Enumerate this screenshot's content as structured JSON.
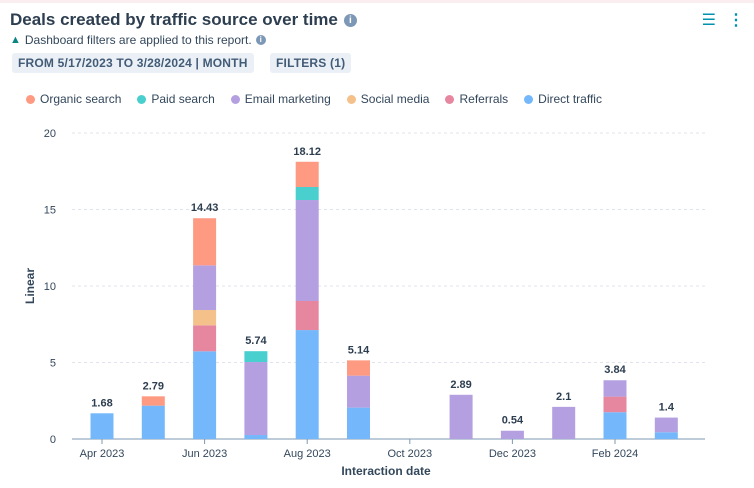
{
  "header": {
    "title": "Deals created by traffic source over time",
    "notice": "Dashboard filters are applied to this report.",
    "date_range": "FROM 5/17/2023 TO 3/28/2024 | MONTH",
    "filters": "FILTERS (1)"
  },
  "chart_data": {
    "type": "bar",
    "stacked": true,
    "xlabel": "Interaction date",
    "ylabel": "Linear",
    "ylim": [
      0,
      20
    ],
    "yticks": [
      0,
      5,
      10,
      15,
      20
    ],
    "grid": true,
    "legend": "top-left",
    "categories": [
      "Apr 2023",
      "May 2023",
      "Jun 2023",
      "Jul 2023",
      "Aug 2023",
      "Sep 2023",
      "Oct 2023",
      "Nov 2023",
      "Dec 2023",
      "Jan 2024",
      "Feb 2024",
      "Mar 2024"
    ],
    "xtick_labels": [
      "Apr 2023",
      "Jun 2023",
      "Aug 2023",
      "Oct 2023",
      "Dec 2023",
      "Feb 2024"
    ],
    "totals": [
      "1.68",
      "2.79",
      "14.43",
      "5.74",
      "18.12",
      "5.14",
      "",
      "2.89",
      "0.54",
      "2.1",
      "3.84",
      "1.4"
    ],
    "series": [
      {
        "name": "Direct traffic",
        "color": "#74b8fb",
        "values": [
          1.68,
          2.18,
          5.73,
          0.26,
          7.12,
          2.05,
          0,
          0,
          0,
          0,
          1.75,
          0.44
        ]
      },
      {
        "name": "Referrals",
        "color": "#e6879f",
        "values": [
          0,
          0,
          1.7,
          0,
          1.9,
          0,
          0,
          0,
          0,
          0,
          1.02,
          0
        ]
      },
      {
        "name": "Social media",
        "color": "#f4c18a",
        "values": [
          0,
          0,
          1.0,
          0,
          0,
          0,
          0,
          0,
          0,
          0,
          0,
          0
        ]
      },
      {
        "name": "Email marketing",
        "color": "#b4a0e1",
        "values": [
          0,
          0,
          2.92,
          4.77,
          6.6,
          2.09,
          0,
          2.89,
          0.54,
          2.1,
          1.07,
          0.96
        ]
      },
      {
        "name": "Paid search",
        "color": "#4acfcf",
        "values": [
          0,
          0,
          0,
          0.71,
          0.85,
          0,
          0,
          0,
          0,
          0,
          0,
          0
        ]
      },
      {
        "name": "Organic search",
        "color": "#fe9a82",
        "values": [
          0,
          0.61,
          3.08,
          0,
          1.65,
          1.0,
          0,
          0,
          0,
          0,
          0,
          0
        ]
      }
    ],
    "legend_order": [
      "Organic search",
      "Paid search",
      "Email marketing",
      "Social media",
      "Referrals",
      "Direct traffic"
    ]
  }
}
